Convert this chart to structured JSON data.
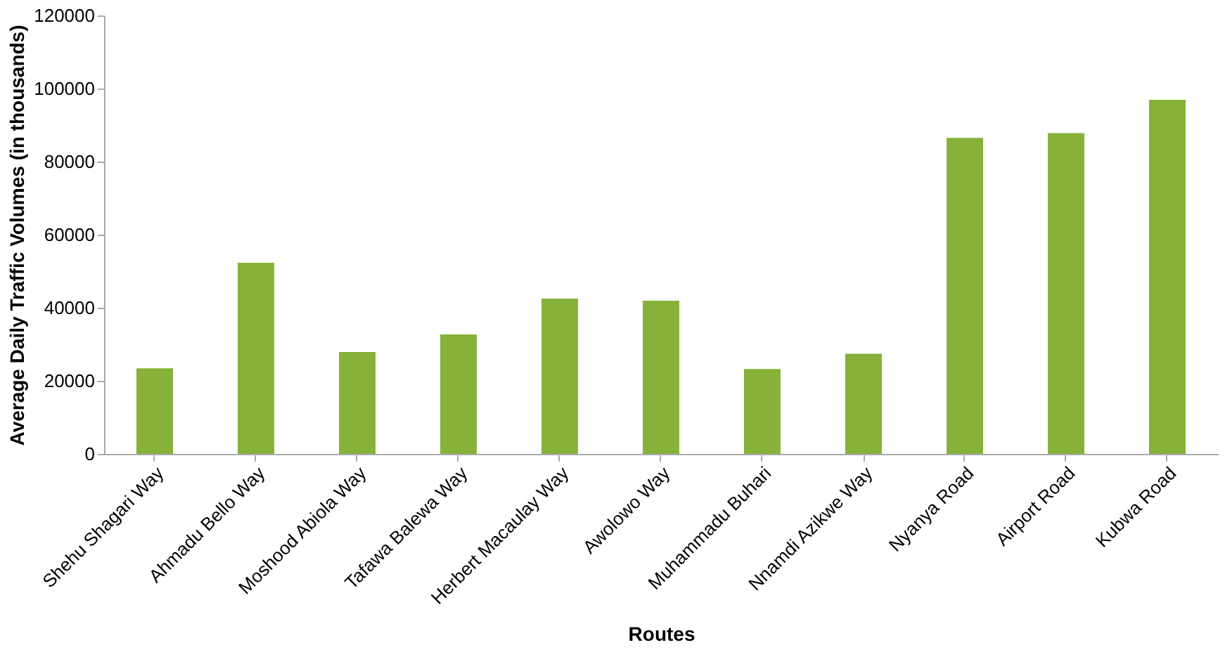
{
  "chart_data": {
    "type": "bar",
    "xlabel": "Routes",
    "ylabel": "Average Daily Traffic Volumes (in thousands)",
    "categories": [
      "Shehu Shagari Way",
      "Ahmadu Bello Way",
      "Moshood Abiola Way",
      "Tafawa Balewa Way",
      "Herbert Macaulay Way",
      "Awolowo Way",
      "Muhammadu Buhari",
      "Nnamdi Azikwe Way",
      "Nyanya Road",
      "Airport Road",
      "Kubwa Road"
    ],
    "values": [
      23400,
      52300,
      27900,
      32700,
      42500,
      41900,
      23200,
      27400,
      86500,
      87800,
      96900
    ],
    "color": "#86b23a",
    "ylim": [
      0,
      120000
    ],
    "yticks": [
      0,
      20000,
      40000,
      60000,
      80000,
      100000,
      120000
    ],
    "grid": false
  }
}
